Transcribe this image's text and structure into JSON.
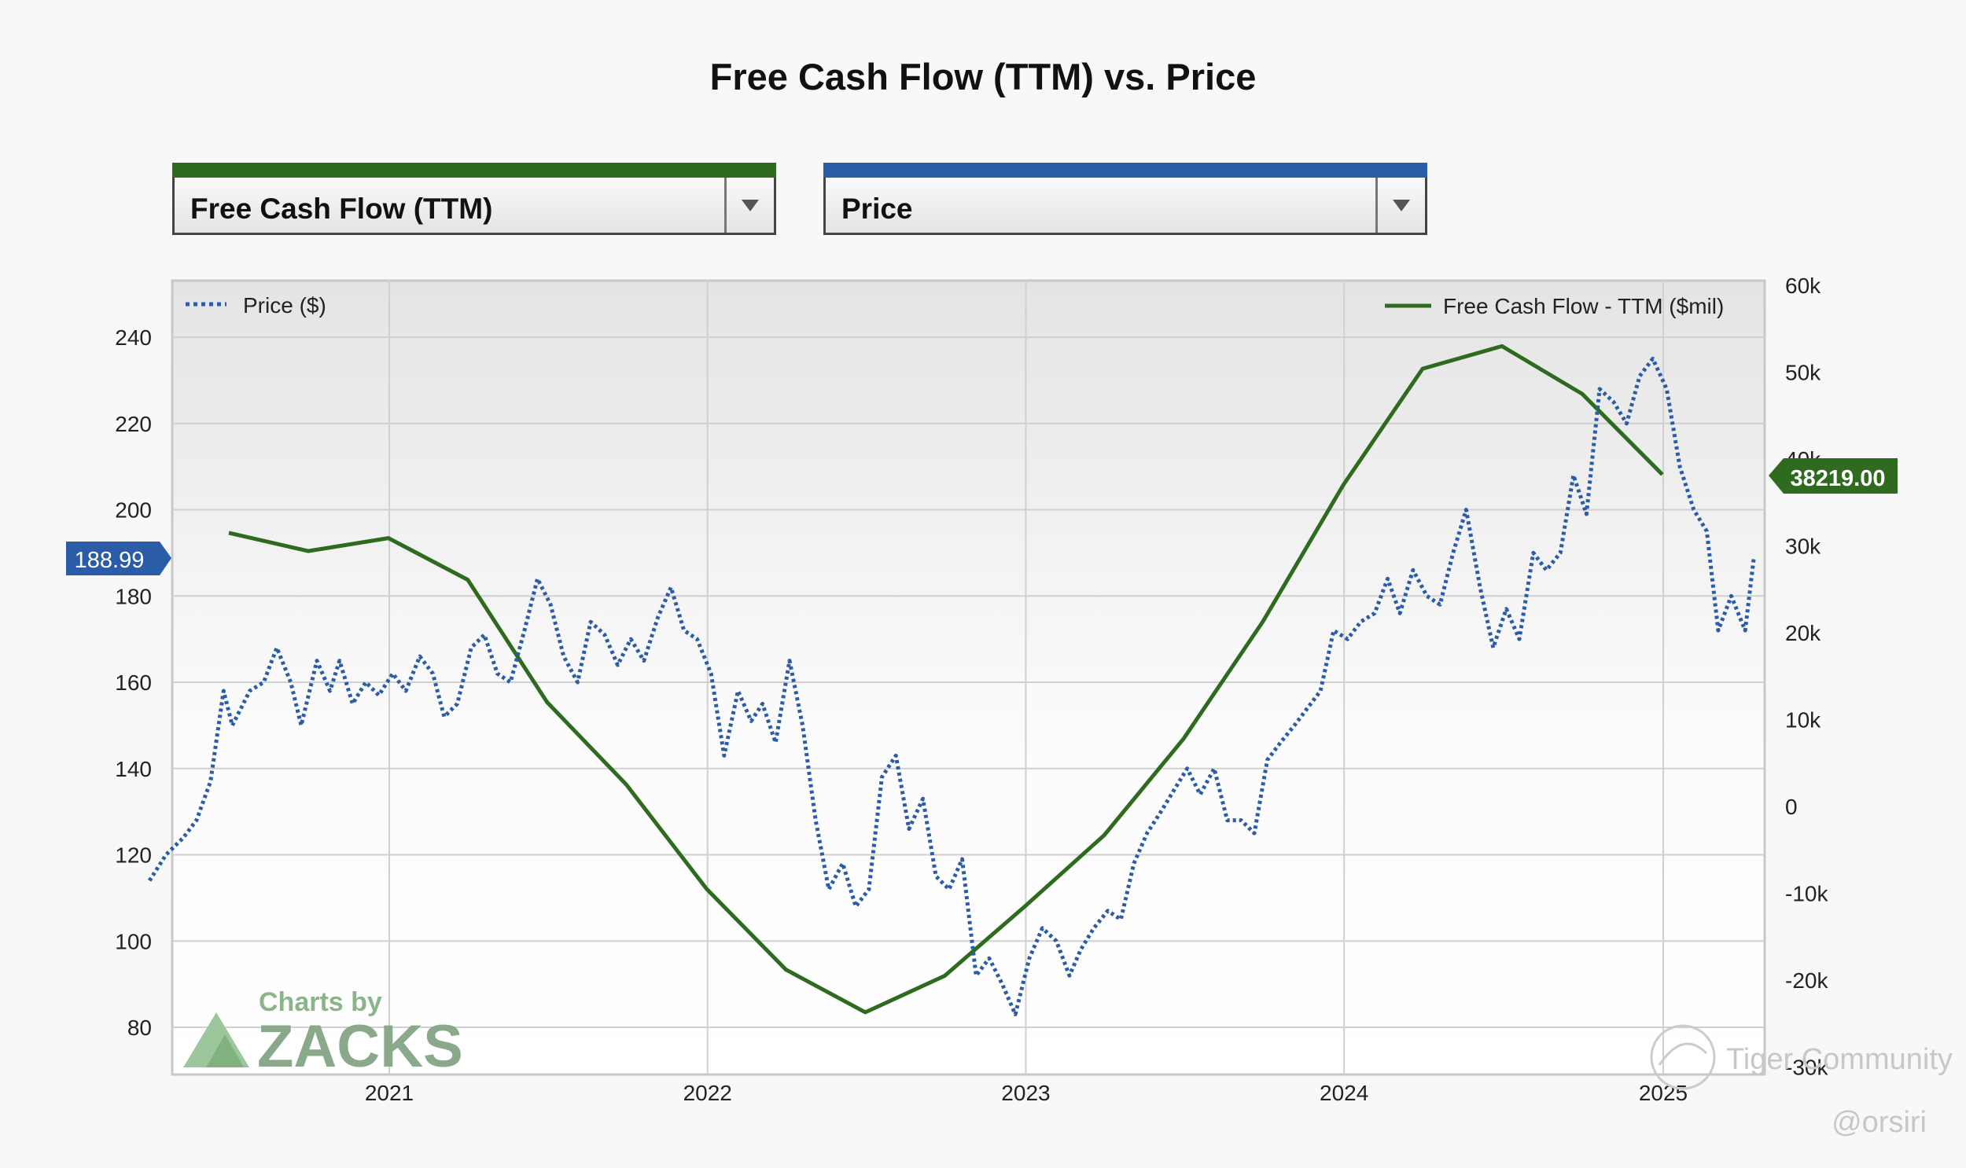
{
  "page": {
    "title": "Free Cash Flow (TTM) vs. Price"
  },
  "selectors": [
    {
      "label": "Free Cash Flow (TTM)",
      "color": "#2e6b1f"
    },
    {
      "label": "Price",
      "color": "#2a5ca8"
    }
  ],
  "chart_data": {
    "type": "line",
    "title": "Free Cash Flow (TTM) vs. Price",
    "xlabel": "",
    "ylabel": "",
    "grid": true,
    "x_ticks": [
      "2021",
      "2022",
      "2023",
      "2024",
      "2025"
    ],
    "y_left": {
      "ticks": [
        80,
        100,
        120,
        140,
        160,
        180,
        200,
        220,
        240
      ],
      "range": [
        70,
        255
      ]
    },
    "y_right": {
      "ticks": [
        "60k",
        "50k",
        "40k",
        "30k",
        "20k",
        "10k",
        "0",
        "-10k",
        "-20k",
        "-30k"
      ],
      "range": [
        -30000,
        60000
      ]
    },
    "legend": {
      "left": "Price ($)",
      "right": "Free Cash Flow - TTM ($mil)",
      "placement": "top"
    },
    "price_badge": "188.99",
    "fcf_badge": "38219.00",
    "series": [
      {
        "name": "Free Cash Flow - TTM ($mil)",
        "axis": "right",
        "color": "#2e6b1f",
        "style": "solid",
        "points": [
          [
            "2020-07-01",
            31500
          ],
          [
            "2020-09-30",
            29400
          ],
          [
            "2020-12-31",
            30900
          ],
          [
            "2021-04-01",
            26100
          ],
          [
            "2021-07-01",
            12000
          ],
          [
            "2021-09-30",
            2500
          ],
          [
            "2021-12-31",
            -9500
          ],
          [
            "2022-04-01",
            -18800
          ],
          [
            "2022-07-01",
            -23700
          ],
          [
            "2022-09-30",
            -19500
          ],
          [
            "2022-12-31",
            -11500
          ],
          [
            "2023-04-01",
            -3300
          ],
          [
            "2023-07-01",
            7800
          ],
          [
            "2023-09-30",
            21300
          ],
          [
            "2023-12-31",
            37000
          ],
          [
            "2024-03-31",
            50400
          ],
          [
            "2024-06-30",
            53000
          ],
          [
            "2024-09-30",
            47500
          ],
          [
            "2024-12-31",
            38219
          ]
        ]
      },
      {
        "name": "Price ($)",
        "axis": "left",
        "color": "#2a5ca8",
        "style": "dotted",
        "points": [
          [
            "2020-04-01",
            114
          ],
          [
            "2020-04-20",
            120
          ],
          [
            "2020-05-10",
            124
          ],
          [
            "2020-05-25",
            128
          ],
          [
            "2020-06-10",
            137
          ],
          [
            "2020-06-25",
            158
          ],
          [
            "2020-07-05",
            150
          ],
          [
            "2020-07-25",
            158
          ],
          [
            "2020-08-10",
            160
          ],
          [
            "2020-08-25",
            168
          ],
          [
            "2020-09-10",
            160
          ],
          [
            "2020-09-22",
            150
          ],
          [
            "2020-10-10",
            165
          ],
          [
            "2020-10-25",
            158
          ],
          [
            "2020-11-05",
            165
          ],
          [
            "2020-11-20",
            155
          ],
          [
            "2020-12-05",
            160
          ],
          [
            "2020-12-20",
            157
          ],
          [
            "2021-01-05",
            162
          ],
          [
            "2021-01-20",
            158
          ],
          [
            "2021-02-05",
            166
          ],
          [
            "2021-02-20",
            162
          ],
          [
            "2021-03-05",
            152
          ],
          [
            "2021-03-20",
            155
          ],
          [
            "2021-04-05",
            168
          ],
          [
            "2021-04-20",
            171
          ],
          [
            "2021-05-05",
            162
          ],
          [
            "2021-05-20",
            160
          ],
          [
            "2021-06-05",
            172
          ],
          [
            "2021-06-20",
            184
          ],
          [
            "2021-07-05",
            178
          ],
          [
            "2021-07-20",
            166
          ],
          [
            "2021-08-05",
            160
          ],
          [
            "2021-08-20",
            174
          ],
          [
            "2021-09-05",
            171
          ],
          [
            "2021-09-20",
            164
          ],
          [
            "2021-10-05",
            170
          ],
          [
            "2021-10-20",
            165
          ],
          [
            "2021-11-05",
            175
          ],
          [
            "2021-11-20",
            182
          ],
          [
            "2021-12-05",
            172
          ],
          [
            "2021-12-20",
            170
          ],
          [
            "2022-01-05",
            162
          ],
          [
            "2022-01-20",
            143
          ],
          [
            "2022-02-05",
            158
          ],
          [
            "2022-02-20",
            151
          ],
          [
            "2022-03-05",
            155
          ],
          [
            "2022-03-20",
            146
          ],
          [
            "2022-04-05",
            165
          ],
          [
            "2022-04-20",
            150
          ],
          [
            "2022-05-05",
            128
          ],
          [
            "2022-05-20",
            112
          ],
          [
            "2022-06-05",
            118
          ],
          [
            "2022-06-20",
            108
          ],
          [
            "2022-07-05",
            112
          ],
          [
            "2022-07-20",
            138
          ],
          [
            "2022-08-05",
            143
          ],
          [
            "2022-08-20",
            126
          ],
          [
            "2022-09-05",
            133
          ],
          [
            "2022-09-20",
            115
          ],
          [
            "2022-10-05",
            112
          ],
          [
            "2022-10-20",
            119
          ],
          [
            "2022-11-05",
            92
          ],
          [
            "2022-11-20",
            96
          ],
          [
            "2022-12-05",
            90
          ],
          [
            "2022-12-20",
            83
          ],
          [
            "2023-01-05",
            96
          ],
          [
            "2023-01-20",
            103
          ],
          [
            "2023-02-05",
            100
          ],
          [
            "2023-02-20",
            92
          ],
          [
            "2023-03-05",
            98
          ],
          [
            "2023-03-20",
            103
          ],
          [
            "2023-04-05",
            107
          ],
          [
            "2023-04-20",
            105
          ],
          [
            "2023-05-05",
            118
          ],
          [
            "2023-05-20",
            125
          ],
          [
            "2023-06-05",
            130
          ],
          [
            "2023-06-20",
            135
          ],
          [
            "2023-07-05",
            140
          ],
          [
            "2023-07-20",
            134
          ],
          [
            "2023-08-05",
            140
          ],
          [
            "2023-08-20",
            128
          ],
          [
            "2023-09-05",
            128
          ],
          [
            "2023-09-20",
            125
          ],
          [
            "2023-10-05",
            142
          ],
          [
            "2023-10-20",
            146
          ],
          [
            "2023-11-05",
            150
          ],
          [
            "2023-11-20",
            154
          ],
          [
            "2023-12-05",
            158
          ],
          [
            "2023-12-20",
            172
          ],
          [
            "2024-01-05",
            170
          ],
          [
            "2024-01-20",
            174
          ],
          [
            "2024-02-05",
            176
          ],
          [
            "2024-02-20",
            184
          ],
          [
            "2024-03-05",
            176
          ],
          [
            "2024-03-20",
            186
          ],
          [
            "2024-04-05",
            180
          ],
          [
            "2024-04-20",
            178
          ],
          [
            "2024-05-05",
            190
          ],
          [
            "2024-05-20",
            200
          ],
          [
            "2024-06-05",
            182
          ],
          [
            "2024-06-20",
            168
          ],
          [
            "2024-07-05",
            177
          ],
          [
            "2024-07-20",
            170
          ],
          [
            "2024-08-05",
            190
          ],
          [
            "2024-08-20",
            186
          ],
          [
            "2024-09-05",
            190
          ],
          [
            "2024-09-20",
            208
          ],
          [
            "2024-10-05",
            199
          ],
          [
            "2024-10-20",
            228
          ],
          [
            "2024-11-05",
            225
          ],
          [
            "2024-11-20",
            220
          ],
          [
            "2024-12-05",
            231
          ],
          [
            "2024-12-20",
            235
          ],
          [
            "2025-01-05",
            228
          ],
          [
            "2025-01-20",
            210
          ],
          [
            "2025-02-05",
            200
          ],
          [
            "2025-02-20",
            195
          ],
          [
            "2025-03-05",
            172
          ],
          [
            "2025-03-20",
            180
          ],
          [
            "2025-04-05",
            172
          ],
          [
            "2025-04-15",
            188.99
          ]
        ]
      }
    ],
    "branding": "Charts by ZACKS"
  },
  "watermarks": [
    "Tiger Community",
    "@orsiri"
  ]
}
